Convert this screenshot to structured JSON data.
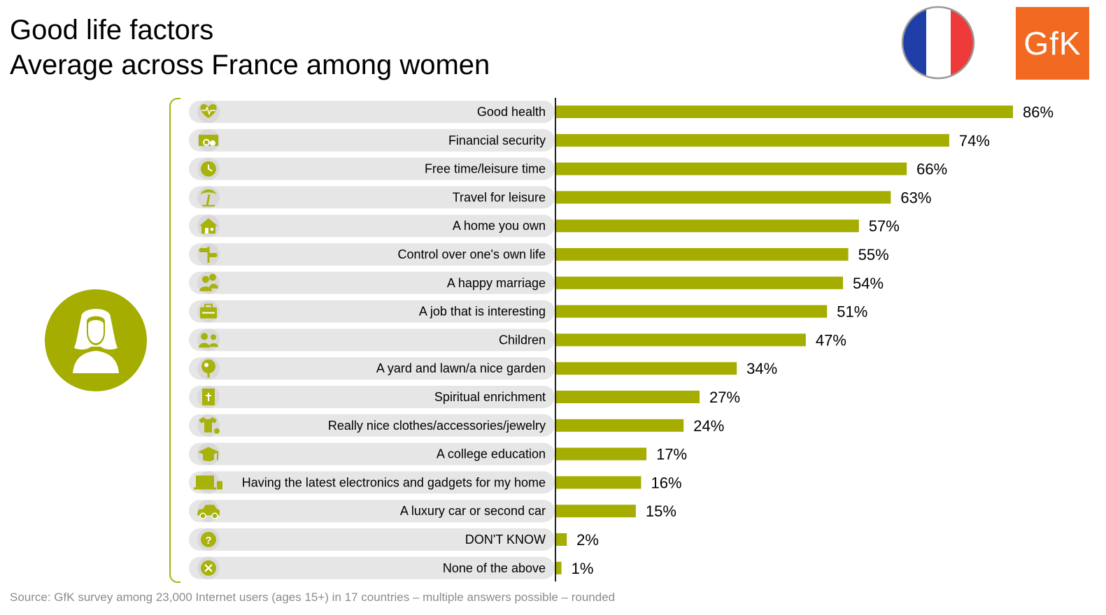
{
  "header": {
    "title_line1": "Good life factors",
    "title_line2": "Average across France among women",
    "brand_logo_text": "GfK",
    "flag": "france-flag"
  },
  "colors": {
    "bar": "#a4ad00",
    "accent": "#a7b30a",
    "label_bg": "#e6e6e6",
    "brand": "#f26a21",
    "flag_blue": "#1f3ea8",
    "flag_red": "#ef3a3a"
  },
  "chart_data": {
    "type": "bar",
    "orientation": "horizontal",
    "categories": [
      "Good health",
      "Financial security",
      "Free time/leisure time",
      "Travel for leisure",
      "A home you own",
      "Control over one's own life",
      "A happy marriage",
      "A job that is interesting",
      "Children",
      "A yard and lawn/a nice garden",
      "Spiritual enrichment",
      "Really nice clothes/accessories/jewelry",
      "A college education",
      "Having the latest electronics and gadgets for my home",
      "A luxury car or second car",
      "DON'T KNOW",
      "None of the above"
    ],
    "values": [
      86,
      74,
      66,
      63,
      57,
      55,
      54,
      51,
      47,
      34,
      27,
      24,
      17,
      16,
      15,
      2,
      1
    ],
    "data_labels": [
      "86%",
      "74%",
      "66%",
      "63%",
      "57%",
      "55%",
      "54%",
      "51%",
      "47%",
      "34%",
      "27%",
      "24%",
      "17%",
      "16%",
      "15%",
      "2%",
      "1%"
    ],
    "icons": [
      "heart-icon",
      "money-icon",
      "clock-icon",
      "palm-tree-icon",
      "house-icon",
      "signpost-icon",
      "couple-icon",
      "briefcase-icon",
      "children-icon",
      "tree-icon",
      "book-icon",
      "clothes-icon",
      "graduation-cap-icon",
      "electronics-icon",
      "car-icon",
      "question-icon",
      "x-circle-icon"
    ],
    "unit": "%",
    "xlim": [
      0,
      86
    ],
    "grid": false,
    "legend": "none",
    "title": "Good life factors",
    "xlabel": "",
    "ylabel": ""
  },
  "footer": {
    "source": "Source: GfK survey among 23,000 Internet users (ages 15+) in 17 countries – multiple answers possible – rounded"
  }
}
